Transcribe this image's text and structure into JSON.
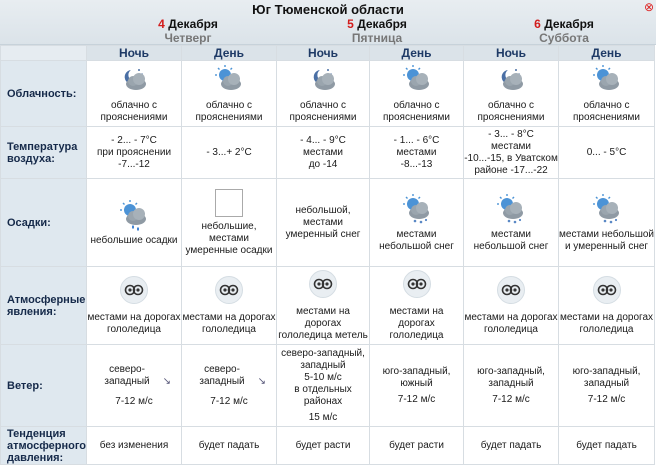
{
  "region": "Юг Тюменской области",
  "close_label": "⊗",
  "days": [
    {
      "num": "4",
      "month": "Декабря",
      "weekday": "Четверг"
    },
    {
      "num": "5",
      "month": "Декабря",
      "weekday": "Пятница"
    },
    {
      "num": "6",
      "month": "Декабря",
      "weekday": "Суббота"
    }
  ],
  "periods": [
    "Ночь",
    "День",
    "Ночь",
    "День",
    "Ночь",
    "День"
  ],
  "labels": {
    "cloud": "Облачность:",
    "temp": "Температура воздуха:",
    "precip": "Осадки:",
    "phen": "Атмосферные явления:",
    "wind": "Ветер:",
    "press": "Тенденция атмосферного давления:"
  },
  "cloud": [
    {
      "text": "облачно с прояснениями",
      "icon": "night-partly-cloudy-icon"
    },
    {
      "text": "облачно с прояснениями",
      "icon": "day-partly-cloudy-icon"
    },
    {
      "text": "облачно с прояснениями",
      "icon": "night-partly-cloudy-icon"
    },
    {
      "text": "облачно с прояснениями",
      "icon": "day-partly-cloudy-icon"
    },
    {
      "text": "облачно с прояснениями",
      "icon": "night-partly-cloudy-icon"
    },
    {
      "text": "облачно с прояснениями",
      "icon": "day-partly-cloudy-icon"
    }
  ],
  "temp": [
    {
      "main": "- 2... - 7°C",
      "extra1": "при прояснении",
      "extra2": "-7...-12"
    },
    {
      "main": "- 3...+ 2°C",
      "extra1": "",
      "extra2": ""
    },
    {
      "main": "- 4... - 9°C",
      "extra1": "местами",
      "extra2": "до -14"
    },
    {
      "main": "- 1... - 6°C",
      "extra1": "местами",
      "extra2": "-8...-13"
    },
    {
      "main": "- 3... - 8°C",
      "extra1": "местами",
      "extra2": "-10...-15, в Уватском районе -17...-22"
    },
    {
      "main": "0... - 5°C",
      "extra1": "",
      "extra2": ""
    }
  ],
  "precip": [
    {
      "text": "небольшие осадки",
      "icon": "light-precipitation-icon"
    },
    {
      "text": "небольшие, местами умеренные осадки",
      "icon": "broken-image-icon"
    },
    {
      "text": "небольшой, местами умеренный снег",
      "icon": ""
    },
    {
      "text": "местами небольшой снег",
      "icon": "light-snow-icon"
    },
    {
      "text": "местами небольшой снег",
      "icon": "light-snow-icon"
    },
    {
      "text": "местами небольшой и умеренный снег",
      "icon": "snow-icon"
    }
  ],
  "phen": [
    {
      "text": "местами на дорогах гололедица"
    },
    {
      "text": "местами на дорогах гололедица"
    },
    {
      "text": "местами на дорогах гололедица метель"
    },
    {
      "text": "местами на дорогах гололедица"
    },
    {
      "text": "местами на дорогах гололедица"
    },
    {
      "text": "местами на дорогах гололедица"
    }
  ],
  "wind": [
    {
      "text": "северо-западный",
      "speed": "7-12 м/с",
      "extra": "",
      "extra_speed": "",
      "arrow": "↘"
    },
    {
      "text": "северо-западный",
      "speed": "7-12 м/с",
      "extra": "",
      "extra_speed": "",
      "arrow": "↘"
    },
    {
      "text": "северо-западный, западный",
      "speed": "5-10 м/с",
      "extra": "в отдельных районах",
      "extra_speed": "15 м/с",
      "arrow": ""
    },
    {
      "text": "юго-западный, южный",
      "speed": "7-12 м/с",
      "extra": "",
      "extra_speed": "",
      "arrow": ""
    },
    {
      "text": "юго-западный, западный",
      "speed": "7-12 м/с",
      "extra": "",
      "extra_speed": "",
      "arrow": ""
    },
    {
      "text": "юго-западный, западный",
      "speed": "7-12 м/с",
      "extra": "",
      "extra_speed": "",
      "arrow": ""
    }
  ],
  "press": [
    "без изменения",
    "будет падать",
    "будет расти",
    "будет расти",
    "будет падать",
    "будет падать"
  ]
}
